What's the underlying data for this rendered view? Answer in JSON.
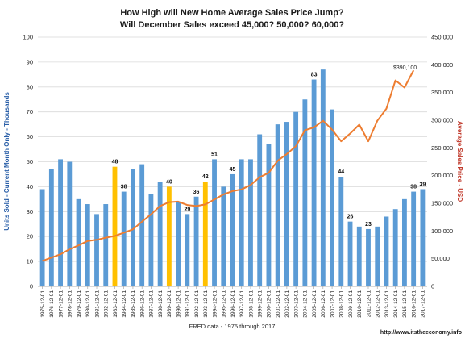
{
  "chart_data": {
    "type": "bar",
    "title": "How High will New Home Average Sales Price Jump?",
    "subtitle": "Will December Sales exceed 45,000? 50,000? 60,000?",
    "xlabel": "FRED data - 1975 through 2017",
    "ylabel": "Units Sold - Current Month Only - Thousands",
    "ylabel_right": "Average Sales Price - USD",
    "source": "http://www.itstheeconomy.info",
    "ylim": [
      0,
      100
    ],
    "ylim_right": [
      0,
      450000
    ],
    "y_ticks": [
      "0",
      "10",
      "20",
      "30",
      "40",
      "50",
      "60",
      "70",
      "80",
      "90",
      "100"
    ],
    "y_ticks_right": [
      "0",
      "50,000",
      "100,000",
      "150,000",
      "200,000",
      "250,000",
      "300,000",
      "350,000",
      "400,000",
      "450,000"
    ],
    "categories": [
      "1975-12-01",
      "1976-12-01",
      "1977-12-01",
      "1978-12-01",
      "1979-12-01",
      "1980-12-01",
      "1981-12-01",
      "1982-12-01",
      "1983-12-01",
      "1984-12-01",
      "1985-12-01",
      "1986-12-01",
      "1987-12-01",
      "1988-12-01",
      "1989-12-01",
      "1990-12-01",
      "1991-12-01",
      "1992-12-01",
      "1993-12-01",
      "1994-12-01",
      "1995-12-01",
      "1996-12-01",
      "1997-12-01",
      "1998-12-01",
      "1999-12-01",
      "2000-12-01",
      "2001-12-01",
      "2002-12-01",
      "2003-12-01",
      "2004-12-01",
      "2005-12-01",
      "2006-12-01",
      "2007-12-01",
      "2008-12-01",
      "2009-12-01",
      "2010-12-01",
      "2011-12-01",
      "2012-12-01",
      "2013-12-01",
      "2014-12-01",
      "2015-12-01",
      "2016-12-01",
      "2017-12-01"
    ],
    "series": [
      {
        "name": "Units Sold",
        "axis": "left",
        "type": "bar",
        "values": [
          39,
          47,
          51,
          50,
          35,
          33,
          29,
          33,
          48,
          38,
          47,
          49,
          37,
          42,
          40,
          34,
          29,
          36,
          42,
          51,
          40,
          45,
          51,
          51,
          61,
          57,
          65,
          66,
          70,
          75,
          83,
          87,
          71,
          44,
          26,
          24,
          23,
          24,
          28,
          31,
          35,
          38,
          39
        ],
        "highlight_indices": [
          8,
          14,
          18
        ],
        "labels": {
          "8": "48",
          "9": "38",
          "14": "40",
          "16": "29",
          "17": "36",
          "18": "42",
          "19": "51",
          "21": "45",
          "30": "83",
          "33": "44",
          "34": "26",
          "36": "23",
          "41": "38",
          "42": "39"
        }
      },
      {
        "name": "Average Sales Price",
        "axis": "right",
        "type": "line",
        "values": [
          46000,
          52000,
          58000,
          67000,
          74000,
          82000,
          84000,
          88000,
          91000,
          97000,
          103000,
          117000,
          130000,
          145000,
          152000,
          153000,
          147000,
          145000,
          148000,
          157000,
          166000,
          172000,
          175000,
          183000,
          197000,
          205000,
          227000,
          239000,
          253000,
          282000,
          287000,
          299000,
          283000,
          262000,
          276000,
          292000,
          262000,
          299000,
          321000,
          372000,
          359000,
          390100,
          null
        ],
        "last_label": "$390,100"
      }
    ],
    "colors": {
      "bar": "#5b9bd5",
      "highlight": "#ffc000",
      "line": "#ed7d31",
      "grid": "#d9d9d9"
    },
    "grid": true
  }
}
